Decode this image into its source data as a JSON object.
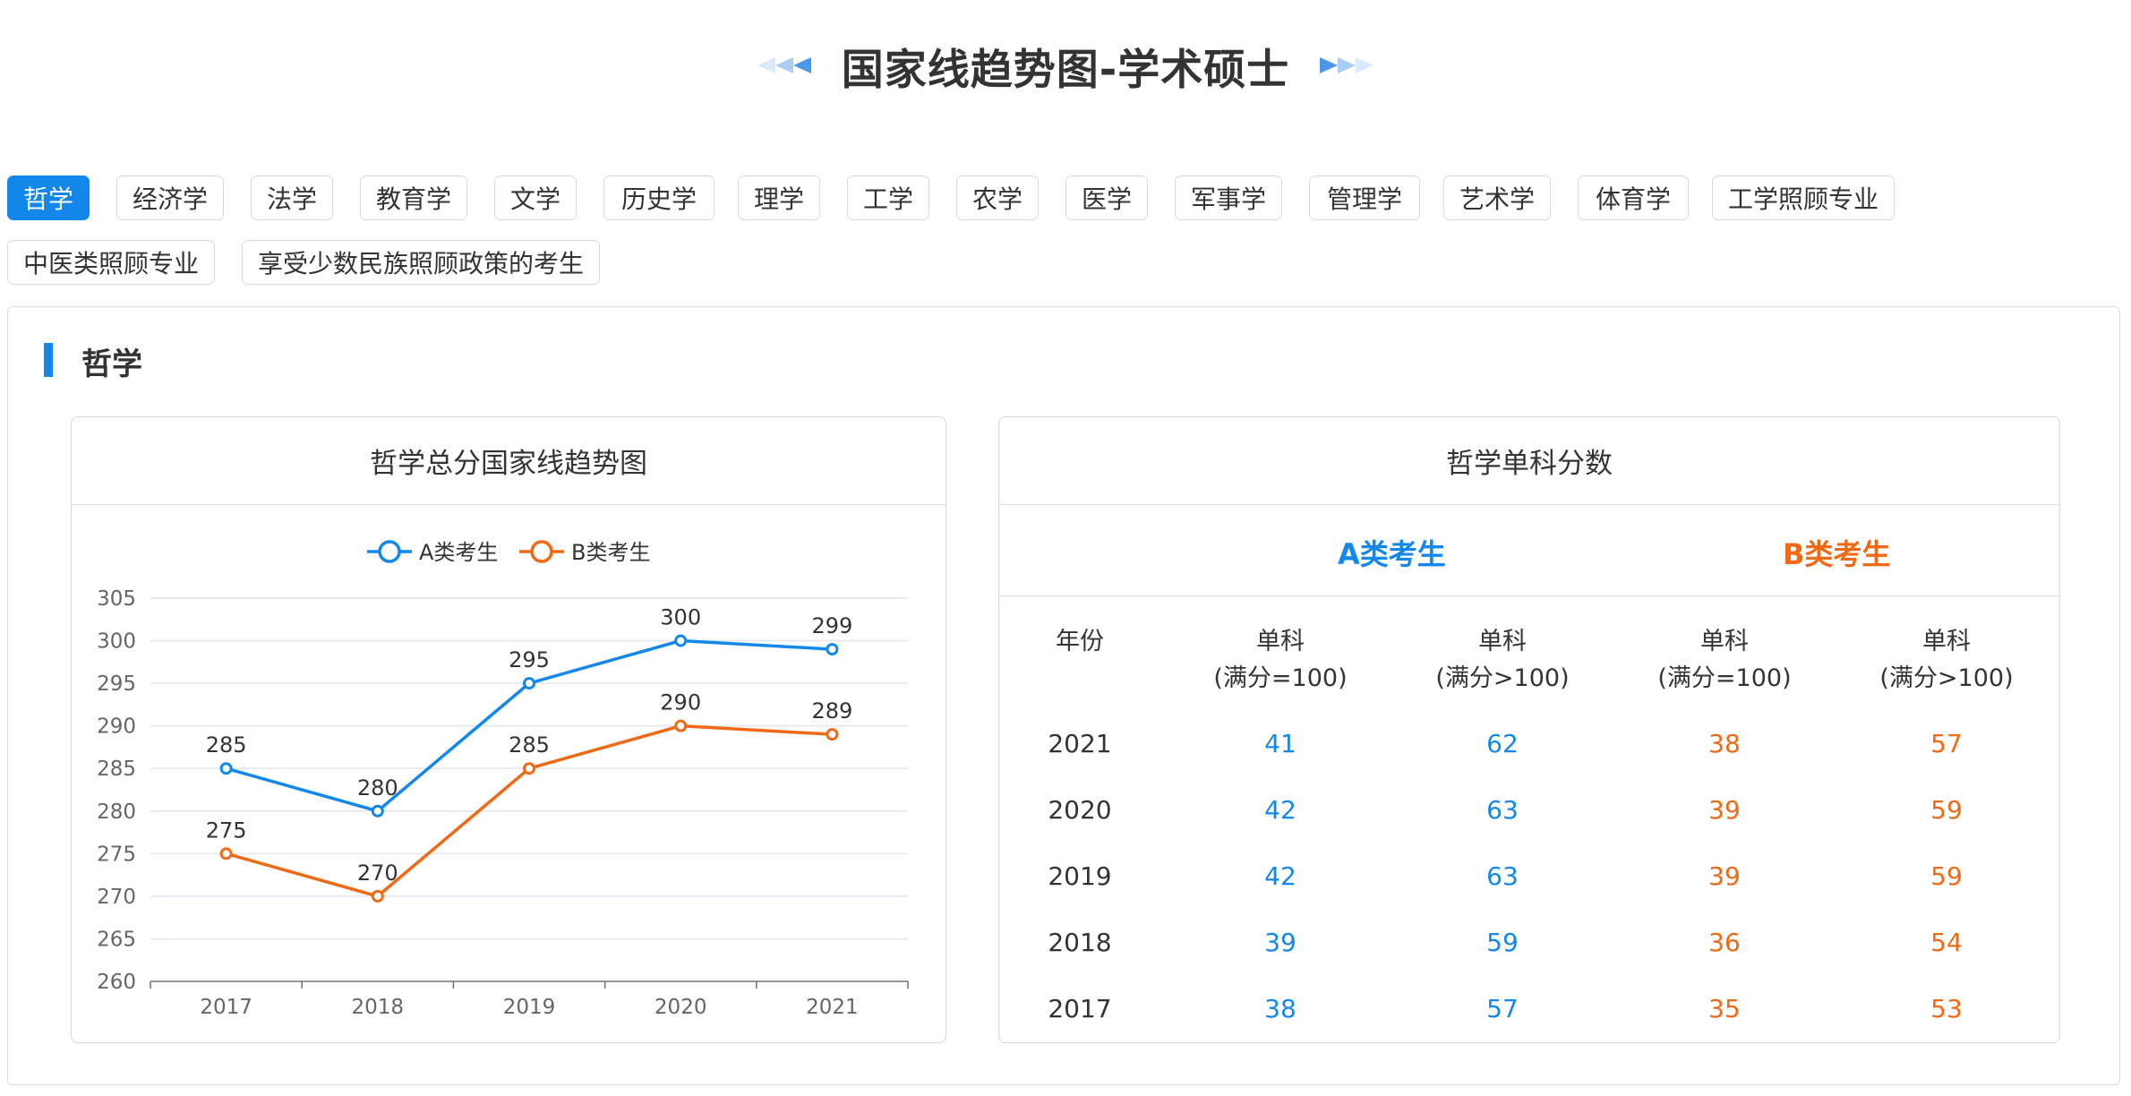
{
  "page": {
    "title": "国家线趋势图-学术硕士"
  },
  "tabs": [
    {
      "label": "哲学",
      "active": true
    },
    {
      "label": "经济学"
    },
    {
      "label": "法学"
    },
    {
      "label": "教育学"
    },
    {
      "label": "文学"
    },
    {
      "label": "历史学"
    },
    {
      "label": "理学"
    },
    {
      "label": "工学"
    },
    {
      "label": "农学"
    },
    {
      "label": "医学"
    },
    {
      "label": "军事学"
    },
    {
      "label": "管理学"
    },
    {
      "label": "艺术学"
    },
    {
      "label": "体育学"
    },
    {
      "label": "工学照顾专业"
    },
    {
      "label": "中医类照顾专业"
    },
    {
      "label": "享受少数民族照顾政策的考生"
    }
  ],
  "section": {
    "title": "哲学"
  },
  "chart_card": {
    "title": "哲学总分国家线趋势图"
  },
  "chart_data": {
    "type": "line",
    "title": "哲学总分国家线趋势图",
    "x": [
      "2017",
      "2018",
      "2019",
      "2020",
      "2021"
    ],
    "series": [
      {
        "name": "A类考生",
        "color": "#1388ea",
        "values": [
          285,
          280,
          295,
          300,
          299
        ]
      },
      {
        "name": "B类考生",
        "color": "#f06a16",
        "values": [
          275,
          270,
          285,
          290,
          289
        ]
      }
    ],
    "yticks": [
      260,
      265,
      270,
      275,
      280,
      285,
      290,
      295,
      300,
      305
    ],
    "ylim": [
      260,
      305
    ],
    "grid": true,
    "legend": "top-center",
    "data_labels": true
  },
  "table_card": {
    "title": "哲学单科分数",
    "group_a": "A类考生",
    "group_b": "B类考生",
    "headers": {
      "year": "年份",
      "col_a1": [
        "单科",
        "(满分=100)"
      ],
      "col_a2": [
        "单科",
        "(满分>100)"
      ],
      "col_b1": [
        "单科",
        "(满分=100)"
      ],
      "col_b2": [
        "单科",
        "(满分>100)"
      ]
    },
    "rows": [
      {
        "year": "2021",
        "a1": "41",
        "a2": "62",
        "b1": "38",
        "b2": "57"
      },
      {
        "year": "2020",
        "a1": "42",
        "a2": "63",
        "b1": "39",
        "b2": "59"
      },
      {
        "year": "2019",
        "a1": "42",
        "a2": "63",
        "b1": "39",
        "b2": "59"
      },
      {
        "year": "2018",
        "a1": "39",
        "a2": "59",
        "b1": "36",
        "b2": "54"
      },
      {
        "year": "2017",
        "a1": "38",
        "a2": "57",
        "b1": "35",
        "b2": "53"
      }
    ]
  },
  "colors": {
    "accent": "#1388ea",
    "series_b": "#f06a16"
  }
}
